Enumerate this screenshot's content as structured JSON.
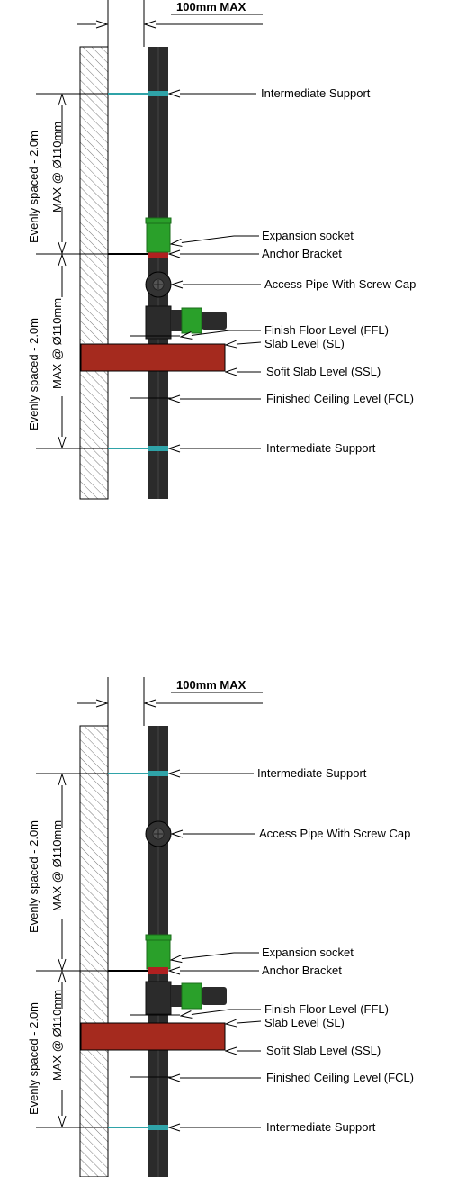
{
  "diagrams": [
    {
      "max_label": "100mm MAX",
      "spacing_line1": "Evenly spaced - 2.0m",
      "spacing_line2": "MAX @ Ø110mm",
      "callouts": {
        "intermediate_support_top": "Intermediate Support",
        "expansion_socket": "Expansion socket",
        "anchor_bracket": "Anchor Bracket",
        "access_pipe": "Access Pipe With Screw Cap",
        "ffl": "Finish Floor Level (FFL)",
        "sl": "Slab Level (SL)",
        "ssl": "Sofit Slab Level (SSL)",
        "fcl": "Finished Ceiling Level (FCL)",
        "intermediate_support_bottom": "Intermediate Support"
      }
    },
    {
      "max_label": "100mm MAX",
      "spacing_line1": "Evenly spaced - 2.0m",
      "spacing_line2": "MAX @ Ø110mm",
      "callouts": {
        "intermediate_support_top": "Intermediate Support",
        "access_pipe": "Access Pipe With Screw Cap",
        "expansion_socket": "Expansion socket",
        "anchor_bracket": "Anchor Bracket",
        "ffl": "Finish Floor Level (FFL)",
        "sl": "Slab Level (SL)",
        "ssl": "Sofit Slab Level (SSL)",
        "fcl": "Finished Ceiling Level (FCL)",
        "intermediate_support_bottom": "Intermediate Support"
      }
    }
  ],
  "colors": {
    "pipe": "#2b2b2b",
    "slab": "#a52a1e",
    "socket": "#2aa02a",
    "support_clip": "#2fa3a8",
    "anchor_clip": "#b02020"
  }
}
